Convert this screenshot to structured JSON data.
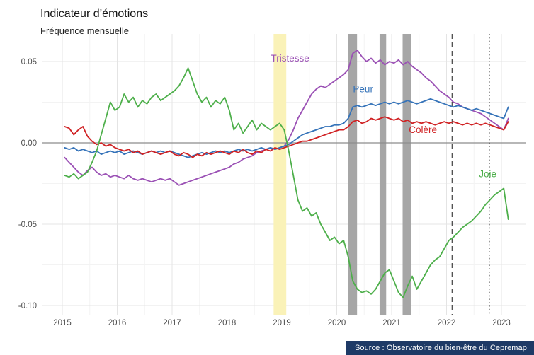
{
  "header": {
    "title": "Indicateur d’émotions",
    "subtitle": "Fréquence mensuelle"
  },
  "source": {
    "text": "Source : Observatoire du bien-être du Cepremap"
  },
  "chart_data": {
    "type": "line",
    "title": "Indicateur d’émotions",
    "subtitle": "Fréquence mensuelle",
    "x_start": 2015.042,
    "x_step": 0.0833333,
    "xlim": [
      2014.6,
      2023.45
    ],
    "ylim": [
      -0.106,
      0.067
    ],
    "grid": true,
    "legend_position": "inline-labels",
    "x_ticks": [
      {
        "value": 2015,
        "label": "2015"
      },
      {
        "value": 2016,
        "label": "2016"
      },
      {
        "value": 2017,
        "label": "2017"
      },
      {
        "value": 2018,
        "label": "2018"
      },
      {
        "value": 2019,
        "label": "2019"
      },
      {
        "value": 2020,
        "label": "2020"
      },
      {
        "value": 2021,
        "label": "2021"
      },
      {
        "value": 2022,
        "label": "2022"
      },
      {
        "value": 2023,
        "label": "2023"
      }
    ],
    "y_ticks": [
      {
        "value": 0.05,
        "label": "0.05"
      },
      {
        "value": 0,
        "label": "0.00"
      },
      {
        "value": -0.05,
        "label": "-0.05"
      },
      {
        "value": -0.1,
        "label": "-0.10"
      }
    ],
    "x_minor": [
      2015.5,
      2016.5,
      2017.5,
      2018.5,
      2019.5,
      2020.5,
      2021.5,
      2022.5
    ],
    "y_minor": [
      0.025,
      -0.025,
      -0.075
    ],
    "series": [
      {
        "name": "Tristesse",
        "color": "#9b51b5",
        "values": [
          -0.009,
          -0.012,
          -0.015,
          -0.018,
          -0.02,
          -0.017,
          -0.015,
          -0.018,
          -0.02,
          -0.019,
          -0.021,
          -0.02,
          -0.021,
          -0.022,
          -0.02,
          -0.022,
          -0.023,
          -0.022,
          -0.023,
          -0.024,
          -0.023,
          -0.022,
          -0.023,
          -0.022,
          -0.024,
          -0.026,
          -0.025,
          -0.024,
          -0.023,
          -0.022,
          -0.021,
          -0.02,
          -0.019,
          -0.018,
          -0.017,
          -0.016,
          -0.015,
          -0.013,
          -0.012,
          -0.01,
          -0.009,
          -0.008,
          -0.006,
          -0.005,
          -0.004,
          -0.003,
          -0.004,
          -0.003,
          -0.002,
          0.002,
          0.008,
          0.015,
          0.02,
          0.025,
          0.03,
          0.033,
          0.035,
          0.034,
          0.036,
          0.038,
          0.04,
          0.042,
          0.045,
          0.055,
          0.057,
          0.053,
          0.05,
          0.052,
          0.049,
          0.051,
          0.048,
          0.05,
          0.049,
          0.051,
          0.048,
          0.05,
          0.047,
          0.045,
          0.043,
          0.04,
          0.038,
          0.035,
          0.032,
          0.03,
          0.028,
          0.025,
          0.024,
          0.022,
          0.021,
          0.02,
          0.019,
          0.018,
          0.016,
          0.014,
          0.012,
          0.01,
          0.008,
          0.015
        ]
      },
      {
        "name": "Peur",
        "color": "#3573b9",
        "values": [
          -0.003,
          -0.004,
          -0.003,
          -0.005,
          -0.004,
          -0.005,
          -0.006,
          -0.005,
          -0.007,
          -0.006,
          -0.005,
          -0.006,
          -0.005,
          -0.007,
          -0.006,
          -0.005,
          -0.006,
          -0.007,
          -0.006,
          -0.005,
          -0.006,
          -0.005,
          -0.006,
          -0.005,
          -0.006,
          -0.007,
          -0.008,
          -0.009,
          -0.008,
          -0.007,
          -0.006,
          -0.007,
          -0.006,
          -0.005,
          -0.006,
          -0.005,
          -0.006,
          -0.005,
          -0.004,
          -0.005,
          -0.004,
          -0.005,
          -0.004,
          -0.003,
          -0.004,
          -0.003,
          -0.004,
          -0.003,
          -0.002,
          -0.001,
          0.001,
          0.003,
          0.005,
          0.006,
          0.007,
          0.008,
          0.009,
          0.01,
          0.01,
          0.011,
          0.011,
          0.012,
          0.015,
          0.022,
          0.023,
          0.022,
          0.023,
          0.024,
          0.023,
          0.024,
          0.025,
          0.024,
          0.025,
          0.024,
          0.025,
          0.026,
          0.025,
          0.024,
          0.025,
          0.026,
          0.027,
          0.026,
          0.025,
          0.024,
          0.023,
          0.022,
          0.023,
          0.022,
          0.021,
          0.02,
          0.021,
          0.02,
          0.019,
          0.018,
          0.017,
          0.016,
          0.015,
          0.022
        ]
      },
      {
        "name": "Colère",
        "color": "#d02224",
        "values": [
          0.01,
          0.009,
          0.005,
          0.008,
          0.01,
          0.004,
          0.001,
          -0.001,
          0.0,
          -0.002,
          -0.001,
          -0.003,
          -0.004,
          -0.005,
          -0.004,
          -0.006,
          -0.005,
          -0.007,
          -0.006,
          -0.005,
          -0.006,
          -0.007,
          -0.006,
          -0.005,
          -0.007,
          -0.008,
          -0.006,
          -0.007,
          -0.009,
          -0.007,
          -0.008,
          -0.006,
          -0.007,
          -0.006,
          -0.005,
          -0.006,
          -0.007,
          -0.005,
          -0.006,
          -0.004,
          -0.006,
          -0.007,
          -0.005,
          -0.006,
          -0.004,
          -0.005,
          -0.003,
          -0.004,
          -0.003,
          -0.002,
          -0.001,
          0.0,
          0.001,
          0.001,
          0.002,
          0.003,
          0.004,
          0.005,
          0.006,
          0.007,
          0.008,
          0.008,
          0.01,
          0.013,
          0.014,
          0.012,
          0.013,
          0.015,
          0.014,
          0.015,
          0.016,
          0.015,
          0.014,
          0.015,
          0.013,
          0.014,
          0.012,
          0.013,
          0.012,
          0.013,
          0.012,
          0.011,
          0.012,
          0.013,
          0.012,
          0.013,
          0.012,
          0.011,
          0.012,
          0.011,
          0.012,
          0.011,
          0.012,
          0.011,
          0.01,
          0.009,
          0.008,
          0.013
        ]
      },
      {
        "name": "Joie",
        "color": "#4daf4a",
        "values": [
          -0.02,
          -0.021,
          -0.019,
          -0.022,
          -0.02,
          -0.018,
          -0.012,
          -0.005,
          0.005,
          0.015,
          0.025,
          0.02,
          0.022,
          0.03,
          0.025,
          0.028,
          0.022,
          0.026,
          0.024,
          0.028,
          0.03,
          0.026,
          0.028,
          0.03,
          0.032,
          0.035,
          0.04,
          0.046,
          0.038,
          0.03,
          0.025,
          0.028,
          0.022,
          0.026,
          0.024,
          0.028,
          0.02,
          0.008,
          0.012,
          0.006,
          0.01,
          0.014,
          0.008,
          0.012,
          0.01,
          0.008,
          0.01,
          0.012,
          0.008,
          -0.005,
          -0.02,
          -0.035,
          -0.042,
          -0.04,
          -0.045,
          -0.043,
          -0.05,
          -0.055,
          -0.06,
          -0.058,
          -0.062,
          -0.06,
          -0.07,
          -0.085,
          -0.09,
          -0.092,
          -0.091,
          -0.093,
          -0.09,
          -0.085,
          -0.08,
          -0.078,
          -0.085,
          -0.092,
          -0.095,
          -0.088,
          -0.082,
          -0.09,
          -0.085,
          -0.08,
          -0.075,
          -0.072,
          -0.07,
          -0.065,
          -0.06,
          -0.058,
          -0.055,
          -0.052,
          -0.05,
          -0.048,
          -0.045,
          -0.042,
          -0.038,
          -0.035,
          -0.032,
          -0.03,
          -0.028,
          -0.047
        ]
      }
    ],
    "bands": [
      {
        "from": 2018.85,
        "to": 2019.08,
        "color": "#faf2b8"
      },
      {
        "from": 2020.21,
        "to": 2020.37,
        "color": "#a6a6a6"
      },
      {
        "from": 2020.78,
        "to": 2020.9,
        "color": "#a6a6a6"
      },
      {
        "from": 2021.2,
        "to": 2021.35,
        "color": "#a6a6a6"
      }
    ],
    "vlines": [
      {
        "x": 2022.1,
        "style": "dashed"
      },
      {
        "x": 2022.78,
        "style": "dotted"
      }
    ],
    "annotations": [
      {
        "text": "Tristesse",
        "x": 2019.15,
        "y": 0.05,
        "color": "#9b51b5"
      },
      {
        "text": "Peur",
        "x": 2020.48,
        "y": 0.031,
        "color": "#3573b9"
      },
      {
        "text": "Colère",
        "x": 2021.57,
        "y": 0.006,
        "color": "#d02224"
      },
      {
        "text": "Joie",
        "x": 2022.75,
        "y": -0.021,
        "color": "#4daf4a"
      }
    ]
  }
}
